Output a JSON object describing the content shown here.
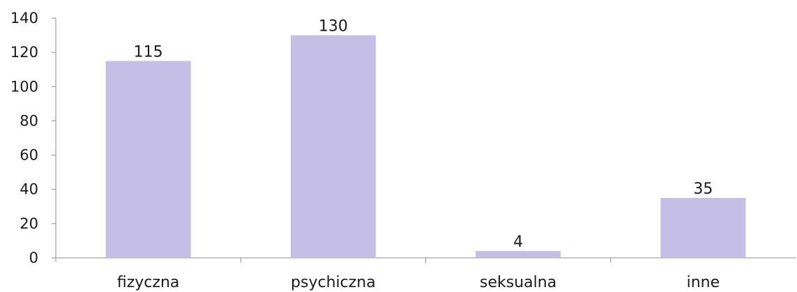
{
  "chart_data": {
    "type": "bar",
    "categories": [
      "fizyczna",
      "psychiczna",
      "seksualna",
      "inne"
    ],
    "values": [
      115,
      130,
      4,
      35
    ],
    "data_labels": [
      "115",
      "130",
      "4",
      "35"
    ],
    "y_ticks": [
      "0",
      "20",
      "40",
      "60",
      "80",
      "100",
      "120",
      "140"
    ],
    "ylim": [
      0,
      140
    ],
    "grid": false,
    "legend": "none",
    "title": "",
    "xlabel": "",
    "ylabel": "",
    "colors": {
      "bar": "#c5bfe8",
      "axis": "#8c8c8c",
      "text": "#1a1a1a"
    }
  }
}
